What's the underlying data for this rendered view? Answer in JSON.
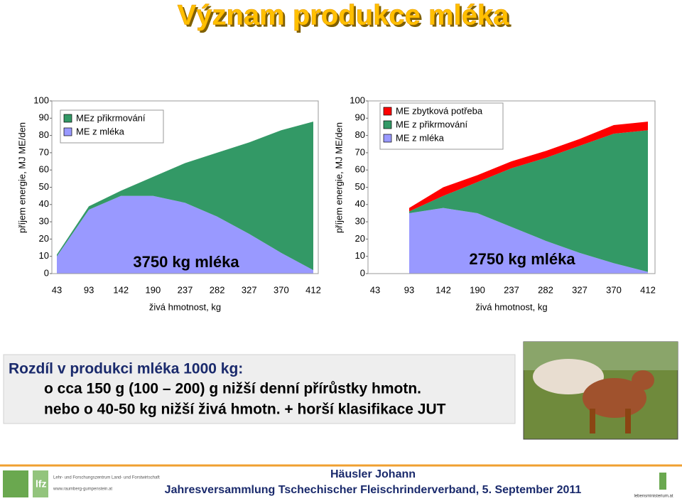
{
  "title": "Význam produkce mléka",
  "chart_data": [
    {
      "type": "stacked_area",
      "y_label": "příjem energie, MJ ME/den",
      "x_label": "živá hmotnost, kg",
      "annotation": "3750 kg mléka",
      "categories": [
        "43",
        "93",
        "142",
        "190",
        "237",
        "282",
        "327",
        "370",
        "412"
      ],
      "ylim": [
        0,
        100
      ],
      "yticks": [
        0,
        10,
        20,
        30,
        40,
        50,
        60,
        70,
        80,
        90,
        100
      ],
      "series": [
        {
          "name": "MEz přikrmování",
          "color": "#339966",
          "values": [
            1,
            2,
            3,
            11,
            23,
            37,
            53,
            71,
            86
          ]
        },
        {
          "name": "ME z mléka",
          "color": "#9999ff",
          "values": [
            10,
            37,
            45,
            45,
            41,
            33,
            23,
            12,
            2
          ]
        }
      ]
    },
    {
      "type": "stacked_area",
      "y_label": "příjem energie, MJ ME/den",
      "x_label": "živá hmotnost, kg",
      "annotation": "2750 kg mléka",
      "categories": [
        "43",
        "93",
        "142",
        "190",
        "237",
        "282",
        "327",
        "370",
        "412"
      ],
      "ylim": [
        0,
        100
      ],
      "yticks": [
        0,
        10,
        20,
        30,
        40,
        50,
        60,
        70,
        80,
        90,
        100
      ],
      "series": [
        {
          "name": "ME zbytková potřeba",
          "color": "#ff0000",
          "values": [
            null,
            2,
            5,
            4,
            4,
            4,
            4,
            5,
            5
          ]
        },
        {
          "name": "ME z přikrmování",
          "color": "#339966",
          "values": [
            null,
            1,
            7,
            18,
            34,
            48,
            62,
            75,
            82
          ]
        },
        {
          "name": "ME z mléka",
          "color": "#9999ff",
          "values": [
            null,
            35,
            38,
            35,
            27,
            19,
            12,
            6,
            1
          ]
        }
      ]
    }
  ],
  "box": {
    "lines": [
      "Rozdíl v produkci mléka 1000 kg:",
      "o cca 150 g (100 – 200) g nižší denní přírůstky hmotn.",
      "nebo o 40-50 kg nižší živá hmotn. + horší klasifikace JUT"
    ]
  },
  "footer": {
    "author": "Häusler Johann",
    "event": "Jahresversammlung Tschechischer Fleischrinderverband, 5. September 2011",
    "logo_short": "lfz",
    "logo_text": "Lehr- und Forschungszentrum Land- und Forstwirtschaft",
    "logo_url": "www.raumberg-gumpenstein.at",
    "ministry": "lebensministerium.at"
  }
}
